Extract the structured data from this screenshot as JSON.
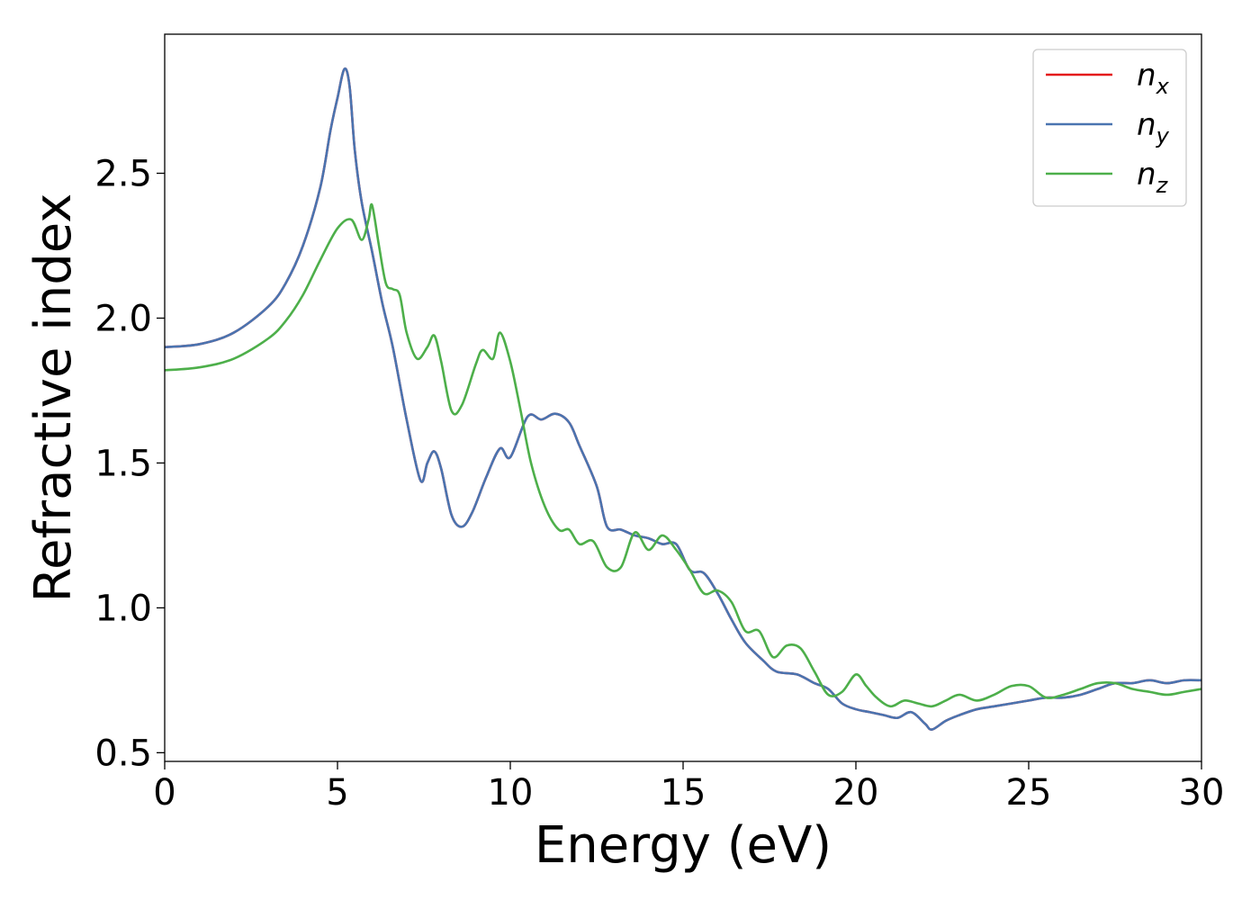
{
  "chart_data": {
    "type": "line",
    "xlabel": "Energy (eV)",
    "ylabel": "Refractive index",
    "xlim": [
      0,
      30
    ],
    "ylim": [
      0.47,
      2.98
    ],
    "xticks": [
      0,
      5,
      10,
      15,
      20,
      25,
      30
    ],
    "xtick_labels": [
      "0",
      "5",
      "10",
      "15",
      "20",
      "25",
      "30"
    ],
    "yticks": [
      0.5,
      1.0,
      1.5,
      2.0,
      2.5
    ],
    "ytick_labels": [
      "0.5",
      "1.0",
      "1.5",
      "2.0",
      "2.5"
    ],
    "grid": false,
    "legend_position": "top-right",
    "series": [
      {
        "name": "n",
        "subscript": "x",
        "color": "#e41a1c",
        "x": [
          0,
          1,
          2,
          3,
          3.5,
          4,
          4.5,
          4.8,
          5.0,
          5.2,
          5.35,
          5.5,
          5.7,
          6.0,
          6.3,
          6.6,
          7.0,
          7.4,
          7.6,
          7.8,
          8.0,
          8.3,
          8.6,
          8.9,
          9.3,
          9.7,
          10.0,
          10.5,
          10.9,
          11.3,
          11.7,
          12.0,
          12.5,
          12.8,
          13.2,
          13.6,
          14.0,
          14.4,
          14.8,
          15.2,
          15.6,
          16.0,
          16.4,
          16.8,
          17.3,
          17.7,
          18.3,
          18.8,
          19.2,
          19.6,
          20.0,
          20.4,
          20.8,
          21.2,
          21.6,
          22.0,
          22.2,
          22.6,
          23.0,
          23.5,
          24.0,
          24.5,
          25.0,
          25.5,
          26.0,
          26.5,
          27.0,
          27.5,
          28.0,
          28.5,
          29.0,
          29.5,
          30.0
        ],
        "y": [
          1.9,
          1.91,
          1.95,
          2.04,
          2.12,
          2.25,
          2.45,
          2.65,
          2.76,
          2.86,
          2.8,
          2.58,
          2.4,
          2.23,
          2.05,
          1.9,
          1.65,
          1.44,
          1.5,
          1.54,
          1.48,
          1.32,
          1.28,
          1.33,
          1.45,
          1.55,
          1.52,
          1.66,
          1.65,
          1.67,
          1.64,
          1.56,
          1.42,
          1.28,
          1.27,
          1.25,
          1.24,
          1.22,
          1.22,
          1.13,
          1.12,
          1.05,
          0.96,
          0.88,
          0.82,
          0.78,
          0.77,
          0.74,
          0.72,
          0.67,
          0.65,
          0.64,
          0.63,
          0.62,
          0.64,
          0.6,
          0.58,
          0.61,
          0.63,
          0.65,
          0.66,
          0.67,
          0.68,
          0.69,
          0.69,
          0.7,
          0.72,
          0.74,
          0.74,
          0.75,
          0.74,
          0.75,
          0.75
        ]
      },
      {
        "name": "n",
        "subscript": "y",
        "color": "#4a74b0",
        "x": [
          0,
          1,
          2,
          3,
          3.5,
          4,
          4.5,
          4.8,
          5.0,
          5.2,
          5.35,
          5.5,
          5.7,
          6.0,
          6.3,
          6.6,
          7.0,
          7.4,
          7.6,
          7.8,
          8.0,
          8.3,
          8.6,
          8.9,
          9.3,
          9.7,
          10.0,
          10.5,
          10.9,
          11.3,
          11.7,
          12.0,
          12.5,
          12.8,
          13.2,
          13.6,
          14.0,
          14.4,
          14.8,
          15.2,
          15.6,
          16.0,
          16.4,
          16.8,
          17.3,
          17.7,
          18.3,
          18.8,
          19.2,
          19.6,
          20.0,
          20.4,
          20.8,
          21.2,
          21.6,
          22.0,
          22.2,
          22.6,
          23.0,
          23.5,
          24.0,
          24.5,
          25.0,
          25.5,
          26.0,
          26.5,
          27.0,
          27.5,
          28.0,
          28.5,
          29.0,
          29.5,
          30.0
        ],
        "y": [
          1.9,
          1.91,
          1.95,
          2.04,
          2.12,
          2.25,
          2.45,
          2.65,
          2.76,
          2.86,
          2.8,
          2.58,
          2.4,
          2.23,
          2.05,
          1.9,
          1.65,
          1.44,
          1.5,
          1.54,
          1.48,
          1.32,
          1.28,
          1.33,
          1.45,
          1.55,
          1.52,
          1.66,
          1.65,
          1.67,
          1.64,
          1.56,
          1.42,
          1.28,
          1.27,
          1.25,
          1.24,
          1.22,
          1.22,
          1.13,
          1.12,
          1.05,
          0.96,
          0.88,
          0.82,
          0.78,
          0.77,
          0.74,
          0.72,
          0.67,
          0.65,
          0.64,
          0.63,
          0.62,
          0.64,
          0.6,
          0.58,
          0.61,
          0.63,
          0.65,
          0.66,
          0.67,
          0.68,
          0.69,
          0.69,
          0.7,
          0.72,
          0.74,
          0.74,
          0.75,
          0.74,
          0.75,
          0.75
        ]
      },
      {
        "name": "n",
        "subscript": "z",
        "color": "#4daf4a",
        "x": [
          0,
          1,
          2,
          3,
          3.5,
          4,
          4.5,
          5.0,
          5.4,
          5.7,
          5.9,
          6.0,
          6.2,
          6.4,
          6.6,
          6.8,
          7.0,
          7.3,
          7.6,
          7.8,
          8.0,
          8.3,
          8.6,
          9.0,
          9.2,
          9.5,
          9.7,
          10.0,
          10.3,
          10.6,
          11.0,
          11.4,
          11.7,
          12.0,
          12.4,
          12.8,
          13.2,
          13.6,
          14.0,
          14.4,
          14.8,
          15.2,
          15.6,
          16.0,
          16.4,
          16.8,
          17.2,
          17.6,
          18.0,
          18.4,
          18.8,
          19.2,
          19.6,
          20.0,
          20.3,
          20.6,
          21.0,
          21.4,
          21.8,
          22.2,
          22.6,
          23.0,
          23.5,
          24.0,
          24.5,
          25.0,
          25.5,
          26.0,
          26.5,
          27.0,
          27.5,
          28.0,
          28.5,
          29.0,
          29.5,
          30.0
        ],
        "y": [
          1.82,
          1.83,
          1.86,
          1.93,
          1.99,
          2.08,
          2.2,
          2.31,
          2.34,
          2.27,
          2.34,
          2.39,
          2.25,
          2.12,
          2.1,
          2.08,
          1.95,
          1.86,
          1.9,
          1.94,
          1.85,
          1.68,
          1.7,
          1.84,
          1.89,
          1.86,
          1.95,
          1.85,
          1.68,
          1.5,
          1.35,
          1.27,
          1.27,
          1.22,
          1.23,
          1.14,
          1.14,
          1.26,
          1.2,
          1.25,
          1.2,
          1.13,
          1.05,
          1.06,
          1.02,
          0.92,
          0.92,
          0.83,
          0.87,
          0.86,
          0.78,
          0.7,
          0.71,
          0.77,
          0.73,
          0.69,
          0.66,
          0.68,
          0.67,
          0.66,
          0.68,
          0.7,
          0.68,
          0.7,
          0.73,
          0.73,
          0.69,
          0.7,
          0.72,
          0.74,
          0.74,
          0.72,
          0.71,
          0.7,
          0.71,
          0.72
        ]
      }
    ]
  }
}
